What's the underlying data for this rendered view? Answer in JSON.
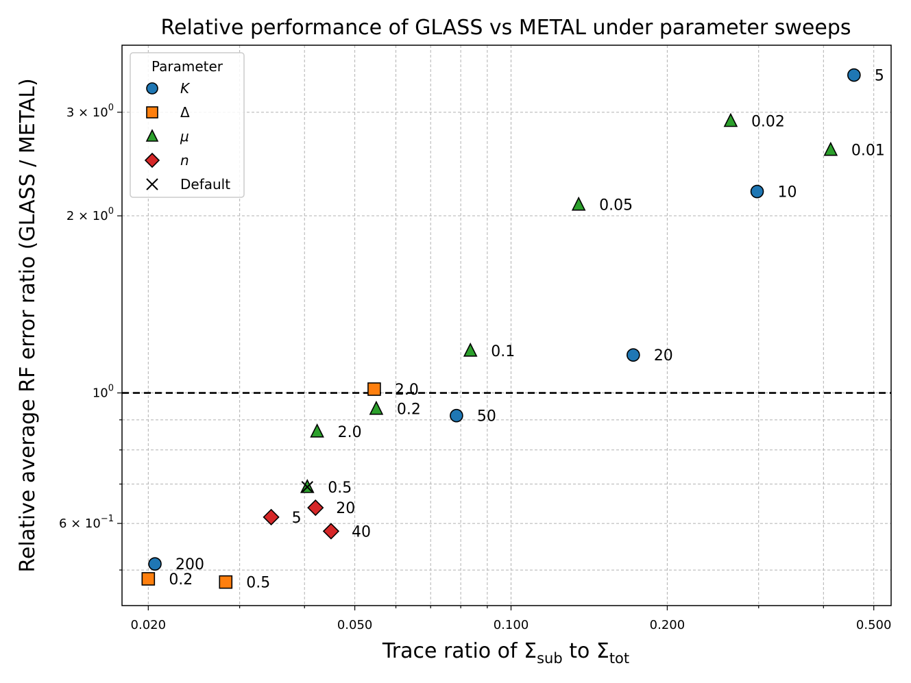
{
  "chart_data": {
    "type": "scatter",
    "title": "Relative performance of GLASS vs METAL under parameter sweeps",
    "xlabel": "Trace ratio of Σ_sub to Σ_tot",
    "xlabel_parts": {
      "a": "Trace ratio of Σ",
      "sub1": "sub",
      "b": " to Σ",
      "sub2": "tot"
    },
    "ylabel": "Relative average RF error ratio (GLASS / METAL)",
    "x_scale": "log",
    "y_scale": "log",
    "xlim": [
      0.0178,
      0.54
    ],
    "ylim": [
      0.435,
      3.9
    ],
    "grid": true,
    "reference_line": {
      "y": 1.0,
      "style": "dashed",
      "color": "#000000"
    },
    "x_ticks": [
      {
        "value": 0.02,
        "label": "0.020"
      },
      {
        "value": 0.05,
        "label": "0.050"
      },
      {
        "value": 0.1,
        "label": "0.100"
      },
      {
        "value": 0.2,
        "label": "0.200"
      },
      {
        "value": 0.5,
        "label": "0.500"
      }
    ],
    "x_minor_ticks": [
      0.03,
      0.04,
      0.06,
      0.07,
      0.08,
      0.09,
      0.3,
      0.4
    ],
    "y_ticks": [
      {
        "value": 0.6,
        "base": "6 × 10",
        "exp": "−1"
      },
      {
        "value": 1.0,
        "base": "10",
        "exp": "0"
      },
      {
        "value": 2.0,
        "base": "2 × 10",
        "exp": "0"
      },
      {
        "value": 3.0,
        "base": "3 × 10",
        "exp": "0"
      }
    ],
    "y_minor_ticks": [
      0.5,
      0.7,
      0.8,
      0.9
    ],
    "legend": {
      "title": "Parameter",
      "position": "upper-left"
    },
    "series": [
      {
        "name": "K",
        "marker": "circle",
        "color": "#1f77b4",
        "points": [
          {
            "x": 0.458,
            "y": 3.47,
            "label": "5"
          },
          {
            "x": 0.298,
            "y": 2.2,
            "label": "10"
          },
          {
            "x": 0.172,
            "y": 1.16,
            "label": "20"
          },
          {
            "x": 0.0785,
            "y": 0.915,
            "label": "50"
          },
          {
            "x": 0.0206,
            "y": 0.512,
            "label": "200"
          }
        ]
      },
      {
        "name": "Δ",
        "marker": "square",
        "color": "#ff7f0e",
        "points": [
          {
            "x": 0.0545,
            "y": 1.015,
            "label": "2.0"
          },
          {
            "x": 0.02,
            "y": 0.483,
            "label": "0.2"
          },
          {
            "x": 0.0282,
            "y": 0.477,
            "label": "0.5"
          }
        ]
      },
      {
        "name": "μ",
        "marker": "triangle",
        "color": "#2ca02c",
        "points": [
          {
            "x": 0.265,
            "y": 2.9,
            "label": "0.02"
          },
          {
            "x": 0.413,
            "y": 2.59,
            "label": "0.01"
          },
          {
            "x": 0.135,
            "y": 2.09,
            "label": "0.05"
          },
          {
            "x": 0.0835,
            "y": 1.18,
            "label": "0.1"
          },
          {
            "x": 0.055,
            "y": 0.94,
            "label": "0.2"
          },
          {
            "x": 0.0423,
            "y": 0.86,
            "label": "2.0"
          },
          {
            "x": 0.0405,
            "y": 0.692,
            "label": "0.5"
          }
        ]
      },
      {
        "name": "n",
        "marker": "diamond",
        "color": "#d62728",
        "points": [
          {
            "x": 0.0345,
            "y": 0.615,
            "label": "5"
          },
          {
            "x": 0.042,
            "y": 0.638,
            "label": "20"
          },
          {
            "x": 0.045,
            "y": 0.582,
            "label": "40"
          }
        ]
      },
      {
        "name": "Default",
        "marker": "x",
        "color": "#000000",
        "points": [
          {
            "x": 0.0405,
            "y": 0.692,
            "label": ""
          }
        ]
      }
    ]
  }
}
